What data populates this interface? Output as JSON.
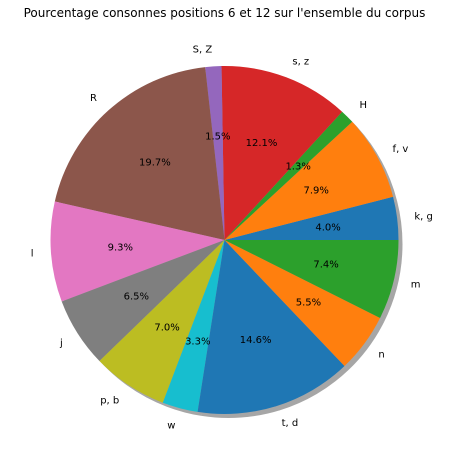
{
  "chart_data": {
    "type": "pie",
    "title": "Pourcentage consonnes positions 6 et 12 sur l'ensemble du corpus",
    "shadow": true,
    "start_angle_deg": 0,
    "direction": "counterclockwise",
    "slices": [
      {
        "label": "k, g",
        "value": 4.0,
        "pct_text": "4.0%",
        "color": "#1f77b4"
      },
      {
        "label": "f, v",
        "value": 7.9,
        "pct_text": "7.9%",
        "color": "#ff7f0e"
      },
      {
        "label": "H",
        "value": 1.3,
        "pct_text": "1.3%",
        "color": "#2ca02c"
      },
      {
        "label": "s, z",
        "value": 12.1,
        "pct_text": "12.1%",
        "color": "#d62728"
      },
      {
        "label": "S, Z",
        "value": 1.5,
        "pct_text": "1.5%",
        "color": "#9467bd"
      },
      {
        "label": "R",
        "value": 19.7,
        "pct_text": "19.7%",
        "color": "#8c564b"
      },
      {
        "label": "l",
        "value": 9.3,
        "pct_text": "9.3%",
        "color": "#e377c2"
      },
      {
        "label": "j",
        "value": 6.5,
        "pct_text": "6.5%",
        "color": "#7f7f7f"
      },
      {
        "label": "p, b",
        "value": 7.0,
        "pct_text": "7.0%",
        "color": "#bcbd22"
      },
      {
        "label": "w",
        "value": 3.3,
        "pct_text": "3.3%",
        "color": "#17becf"
      },
      {
        "label": "t, d",
        "value": 14.6,
        "pct_text": "14.6%",
        "color": "#1f77b4"
      },
      {
        "label": "n",
        "value": 5.5,
        "pct_text": "5.5%",
        "color": "#ff7f0e"
      },
      {
        "label": "m",
        "value": 7.4,
        "pct_text": "7.4%",
        "color": "#2ca02c"
      }
    ]
  }
}
